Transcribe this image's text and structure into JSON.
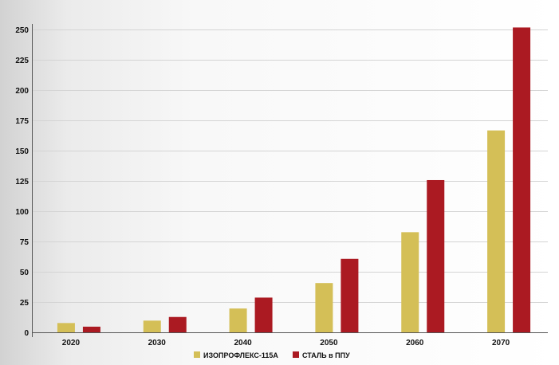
{
  "chart_data": {
    "type": "bar",
    "categories": [
      "2020",
      "2030",
      "2040",
      "2050",
      "2060",
      "2070"
    ],
    "series": [
      {
        "name": "ИЗОПРОФЛЕКС-115А",
        "color": "#d4bf57",
        "values": [
          8,
          10,
          20,
          41,
          83,
          167
        ]
      },
      {
        "name": "СТАЛЬ в ППУ",
        "color": "#ab1a22",
        "values": [
          5,
          13,
          29,
          61,
          126,
          252
        ]
      }
    ],
    "y_ticks": [
      0,
      25,
      50,
      75,
      100,
      125,
      150,
      175,
      200,
      225,
      250
    ],
    "ylim": [
      0,
      262
    ],
    "grid": true,
    "legend_position": "bottom-center"
  }
}
